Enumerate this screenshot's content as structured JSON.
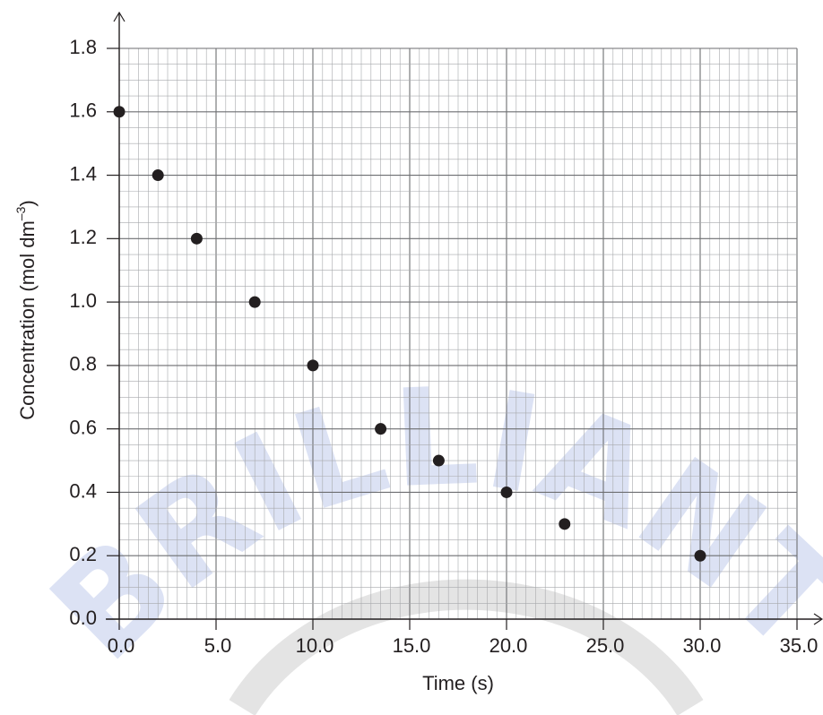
{
  "chart_data": {
    "type": "scatter",
    "xlabel": "Time (s)",
    "ylabel_main": "Concentration (mol dm",
    "ylabel_sup": "–3",
    "ylabel_close": ")",
    "xlim": [
      0,
      35
    ],
    "ylim": [
      0,
      1.8
    ],
    "xticks": [
      "0.0",
      "5.0",
      "10.0",
      "15.0",
      "20.0",
      "25.0",
      "30.0",
      "35.0"
    ],
    "yticks": [
      "0.0",
      "0.2",
      "0.4",
      "0.6",
      "0.8",
      "1.0",
      "1.2",
      "1.4",
      "1.6",
      "1.8"
    ],
    "grid": true,
    "series": [
      {
        "x": [
          0,
          2,
          4,
          7,
          10,
          13.5,
          16.5,
          20,
          23,
          30
        ],
        "y": [
          1.6,
          1.4,
          1.2,
          1.0,
          0.8,
          0.6,
          0.5,
          0.4,
          0.3,
          0.2
        ]
      }
    ]
  },
  "watermark": {
    "text": "BRILLIANT",
    "color": "#d6ddf3"
  },
  "colors": {
    "grid_minor": "#a7a9ac",
    "grid_major": "#6d6e71",
    "axis": "#231f20",
    "marker": "#231f20"
  }
}
